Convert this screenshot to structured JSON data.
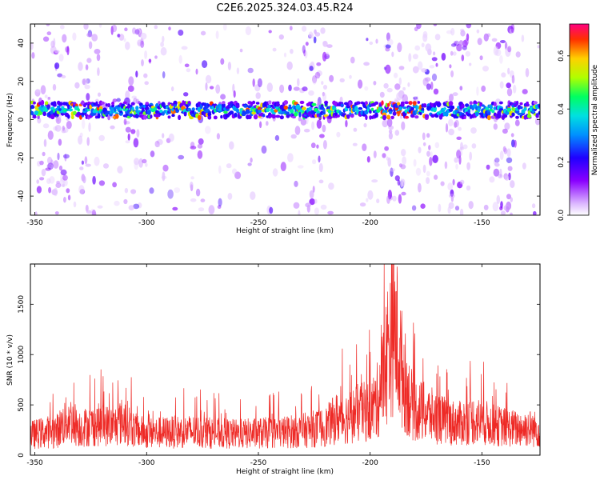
{
  "colors": {
    "snr_line": "#ee2a26",
    "frame": "#000000"
  },
  "chart_data": [
    {
      "type": "heatmap",
      "title": "C2E6.2025.324.03.45.R24",
      "xlabel": "Height of straight line (km)",
      "ylabel": "Frequency (Hz)",
      "xlim": [
        -352,
        -124
      ],
      "ylim": [
        -50,
        50
      ],
      "xticks": [
        -350,
        -300,
        -250,
        -200,
        -150
      ],
      "xtick_labels": [
        "-350",
        "-300",
        "-250",
        "-200",
        "-150"
      ],
      "yticks": [
        -40,
        -20,
        0,
        20,
        40
      ],
      "ytick_labels": [
        "-40",
        "-20",
        "0",
        "20",
        "40"
      ],
      "ridge": {
        "center_frequency_hz": 5,
        "width_hz": 4,
        "peak_amplitude": 0.7,
        "peak_region_km": [
          -195,
          -180
        ]
      },
      "colorbar": {
        "label": "Normalized spectral amplitude",
        "range": [
          0,
          0.72
        ],
        "ticks": [
          0,
          0.2,
          0.4,
          0.6
        ],
        "tick_labels": [
          "0.0",
          "0.2",
          "0.4",
          "0.6"
        ]
      }
    },
    {
      "type": "line",
      "xlabel": "Height of straight line (km)",
      "ylabel": "SNR (10 * v/v)",
      "xlim": [
        -352,
        -124
      ],
      "ylim": [
        0,
        1900
      ],
      "xticks": [
        -350,
        -300,
        -250,
        -200,
        -150
      ],
      "xtick_labels": [
        "-350",
        "-300",
        "-250",
        "-200",
        "-150"
      ],
      "yticks": [
        0,
        500,
        1000,
        1500
      ],
      "ytick_labels": [
        "0",
        "500",
        "1000",
        "1500"
      ],
      "series": [
        {
          "name": "SNR",
          "x": [
            -352,
            -345,
            -340,
            -335,
            -330,
            -325,
            -320,
            -315,
            -310,
            -305,
            -300,
            -290,
            -280,
            -270,
            -260,
            -250,
            -240,
            -230,
            -220,
            -215,
            -210,
            -205,
            -200,
            -197,
            -194,
            -192,
            -190,
            -188,
            -186,
            -184,
            -182,
            -180,
            -175,
            -170,
            -165,
            -160,
            -155,
            -150,
            -145,
            -140,
            -135,
            -130,
            -124
          ],
          "values": [
            230,
            260,
            280,
            420,
            310,
            330,
            350,
            320,
            400,
            280,
            250,
            260,
            270,
            250,
            240,
            250,
            260,
            280,
            320,
            420,
            430,
            480,
            500,
            600,
            900,
            1200,
            1500,
            1300,
            1000,
            800,
            600,
            520,
            480,
            420,
            380,
            360,
            400,
            380,
            340,
            320,
            300,
            310,
            290
          ]
        }
      ]
    }
  ]
}
